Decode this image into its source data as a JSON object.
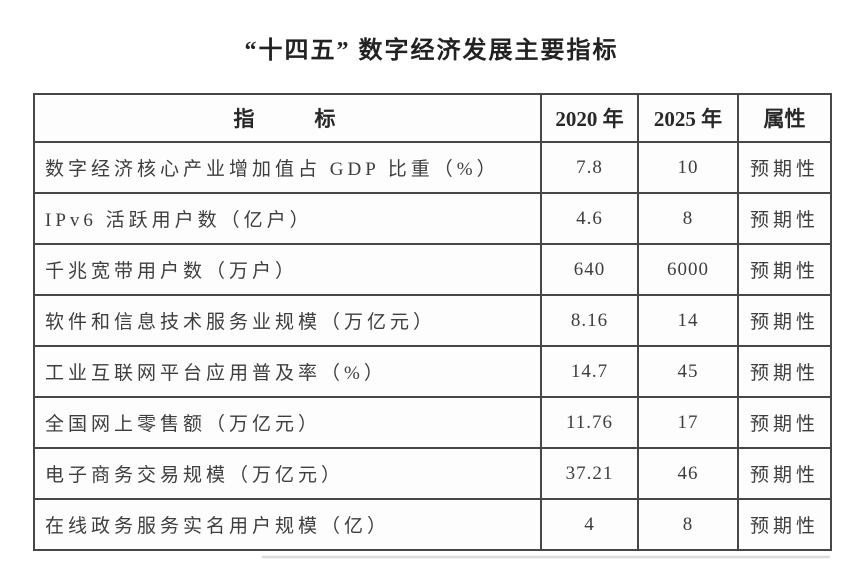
{
  "page": {
    "title": "“十四五” 数字经济发展主要指标"
  },
  "table": {
    "headers": {
      "indicator": "指　　标",
      "y2020": "2020 年",
      "y2025": "2025 年",
      "attribute": "属性"
    },
    "rows": [
      {
        "indicator": "数字经济核心产业增加值占 GDP 比重（%）",
        "y2020": "7.8",
        "y2025": "10",
        "attribute": "预期性"
      },
      {
        "indicator": "IPv6 活跃用户数（亿户）",
        "y2020": "4.6",
        "y2025": "8",
        "attribute": "预期性"
      },
      {
        "indicator": "千兆宽带用户数（万户）",
        "y2020": "640",
        "y2025": "6000",
        "attribute": "预期性"
      },
      {
        "indicator": "软件和信息技术服务业规模（万亿元）",
        "y2020": "8.16",
        "y2025": "14",
        "attribute": "预期性"
      },
      {
        "indicator": "工业互联网平台应用普及率（%）",
        "y2020": "14.7",
        "y2025": "45",
        "attribute": "预期性"
      },
      {
        "indicator": "全国网上零售额（万亿元）",
        "y2020": "11.76",
        "y2025": "17",
        "attribute": "预期性"
      },
      {
        "indicator": "电子商务交易规模（万亿元）",
        "y2020": "37.21",
        "y2025": "46",
        "attribute": "预期性"
      },
      {
        "indicator": "在线政务服务实名用户规模（亿）",
        "y2020": "4",
        "y2025": "8",
        "attribute": "预期性"
      }
    ]
  }
}
